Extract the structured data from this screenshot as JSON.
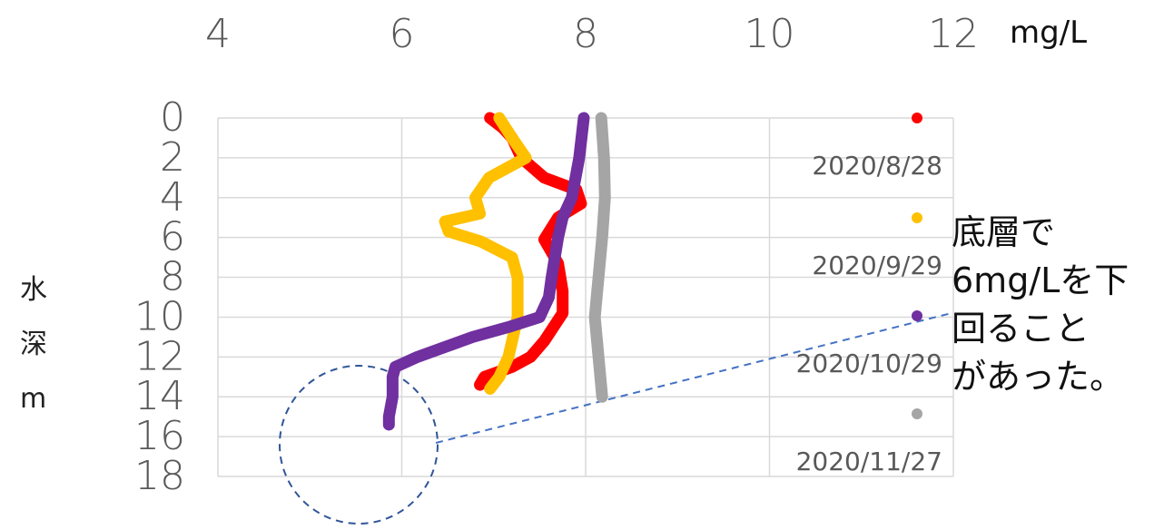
{
  "chart_data": {
    "type": "line",
    "x_axis_label": "mg/L",
    "y_axis_label": "水深m",
    "annotation_lines": [
      "底層で",
      "6mg/Lを下",
      "回ること",
      "があった。"
    ],
    "xlim": [
      4,
      12
    ],
    "xticks": [
      4,
      6,
      8,
      10,
      12
    ],
    "ylim": [
      0,
      18
    ],
    "yticks": [
      0,
      2,
      4,
      6,
      8,
      10,
      12,
      14,
      16,
      18
    ],
    "y_inverted": true,
    "grid": true,
    "legend": "right",
    "series": [
      {
        "name": "2020/8/28",
        "color": "#ff0000",
        "x": [
          6.96,
          7.1,
          7.2,
          7.3,
          7.55,
          7.9,
          7.95,
          7.7,
          7.55,
          7.7,
          7.75,
          7.75,
          7.55,
          7.4,
          7.2,
          6.9,
          6.85
        ],
        "y": [
          0,
          0.5,
          1,
          2,
          3,
          3.6,
          4.3,
          5,
          6.1,
          7.3,
          8.7,
          9.8,
          11.2,
          12,
          12.5,
          13,
          13.4
        ]
      },
      {
        "name": "2020/9/29",
        "color": "#ffc000",
        "x": [
          7.06,
          7.2,
          7.35,
          7.15,
          6.95,
          6.8,
          6.85,
          6.47,
          6.51,
          6.86,
          7.2,
          7.26,
          7.26,
          7.16,
          7.06,
          6.96
        ],
        "y": [
          0,
          1,
          2,
          2.5,
          3,
          4,
          4.8,
          5.2,
          5.7,
          6.2,
          7,
          8,
          10,
          12,
          13,
          13.6
        ]
      },
      {
        "name": "2020/10/29",
        "color": "#7030a0",
        "x": [
          7.98,
          7.93,
          7.85,
          7.75,
          7.7,
          7.63,
          7.6,
          7.5,
          7.16,
          6.77,
          6.47,
          6.17,
          5.93,
          5.9,
          5.9,
          5.86,
          5.86
        ],
        "y": [
          0,
          2,
          4,
          5,
          6,
          8,
          9,
          10,
          10.5,
          11,
          11.5,
          12,
          12.5,
          13,
          14,
          15,
          15.4
        ]
      },
      {
        "name": "2020/11/27",
        "color": "#a5a5a5",
        "x": [
          8.17,
          8.2,
          8.21,
          8.18,
          8.14,
          8.1,
          8.14,
          8.18
        ],
        "y": [
          0,
          2,
          4,
          6,
          8,
          10,
          12,
          14
        ]
      }
    ]
  }
}
